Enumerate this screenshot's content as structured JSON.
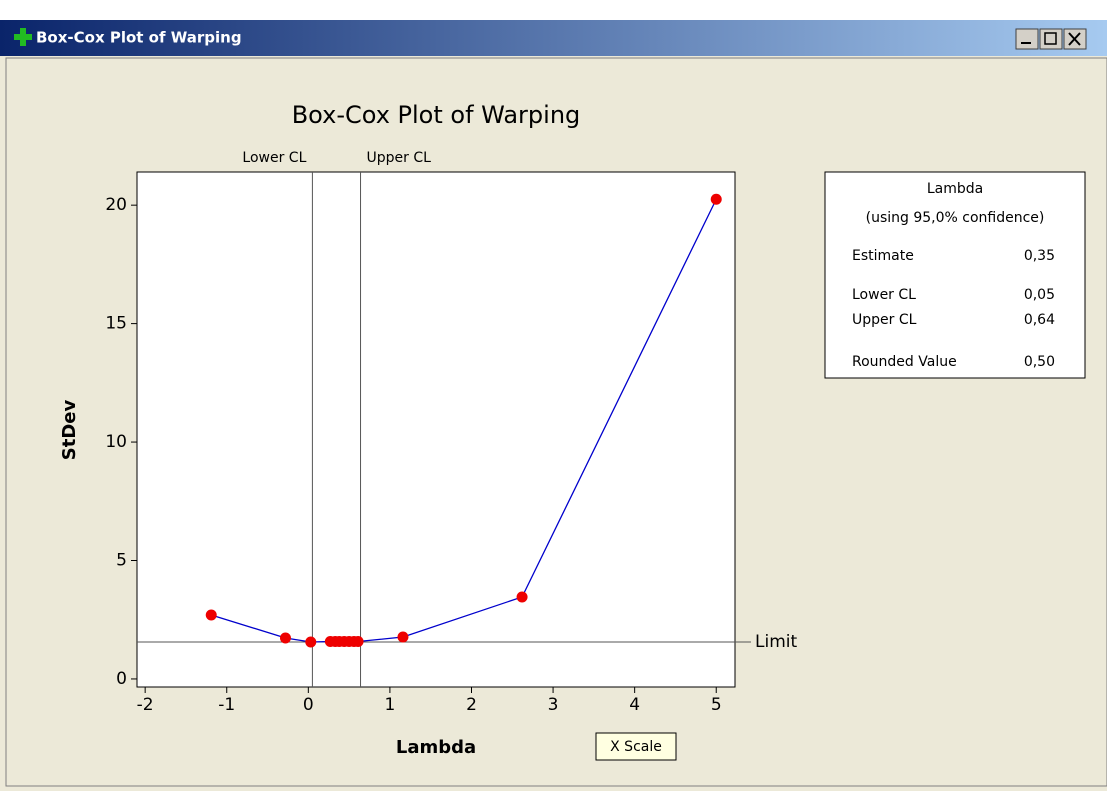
{
  "window": {
    "title": "Box-Cox Plot of Warping"
  },
  "chart_data": {
    "type": "line",
    "title": "Box-Cox Plot of Warping",
    "xlabel": "Lambda",
    "ylabel": "StDev",
    "x": [
      -1.19,
      -0.28,
      0.03,
      0.27,
      0.33,
      0.38,
      0.44,
      0.5,
      0.56,
      0.61,
      1.16,
      2.62,
      5
    ],
    "series": [
      {
        "color": "#0000cc",
        "marker_color": "#ee0000",
        "values": [
          2.7,
          1.73,
          1.56,
          1.58,
          1.58,
          1.58,
          1.58,
          1.58,
          1.58,
          1.58,
          1.77,
          3.46,
          20.25
        ]
      }
    ],
    "xlim": [
      -2.1,
      5.23
    ],
    "ylim": [
      -0.34,
      21.4
    ],
    "xticks": [
      -2,
      -1,
      0,
      1,
      2,
      3,
      4,
      5
    ],
    "yticks": [
      0,
      5,
      10,
      15,
      20
    ],
    "vlines": [
      {
        "value": 0.05,
        "label": "Lower CL"
      },
      {
        "value": 0.64,
        "label": "Upper CL"
      }
    ],
    "hlines": [
      {
        "value": 1.56,
        "label": "Limit"
      }
    ],
    "info_box": {
      "title": "Lambda",
      "subtitle": "(using 95,0% confidence)",
      "rows": [
        [
          "Estimate",
          "0,35"
        ],
        [
          "Lower CL",
          "0,05"
        ],
        [
          "Upper CL",
          "0,64"
        ],
        [
          "Rounded Value",
          "0,50"
        ]
      ]
    },
    "tooltip": "X Scale"
  }
}
